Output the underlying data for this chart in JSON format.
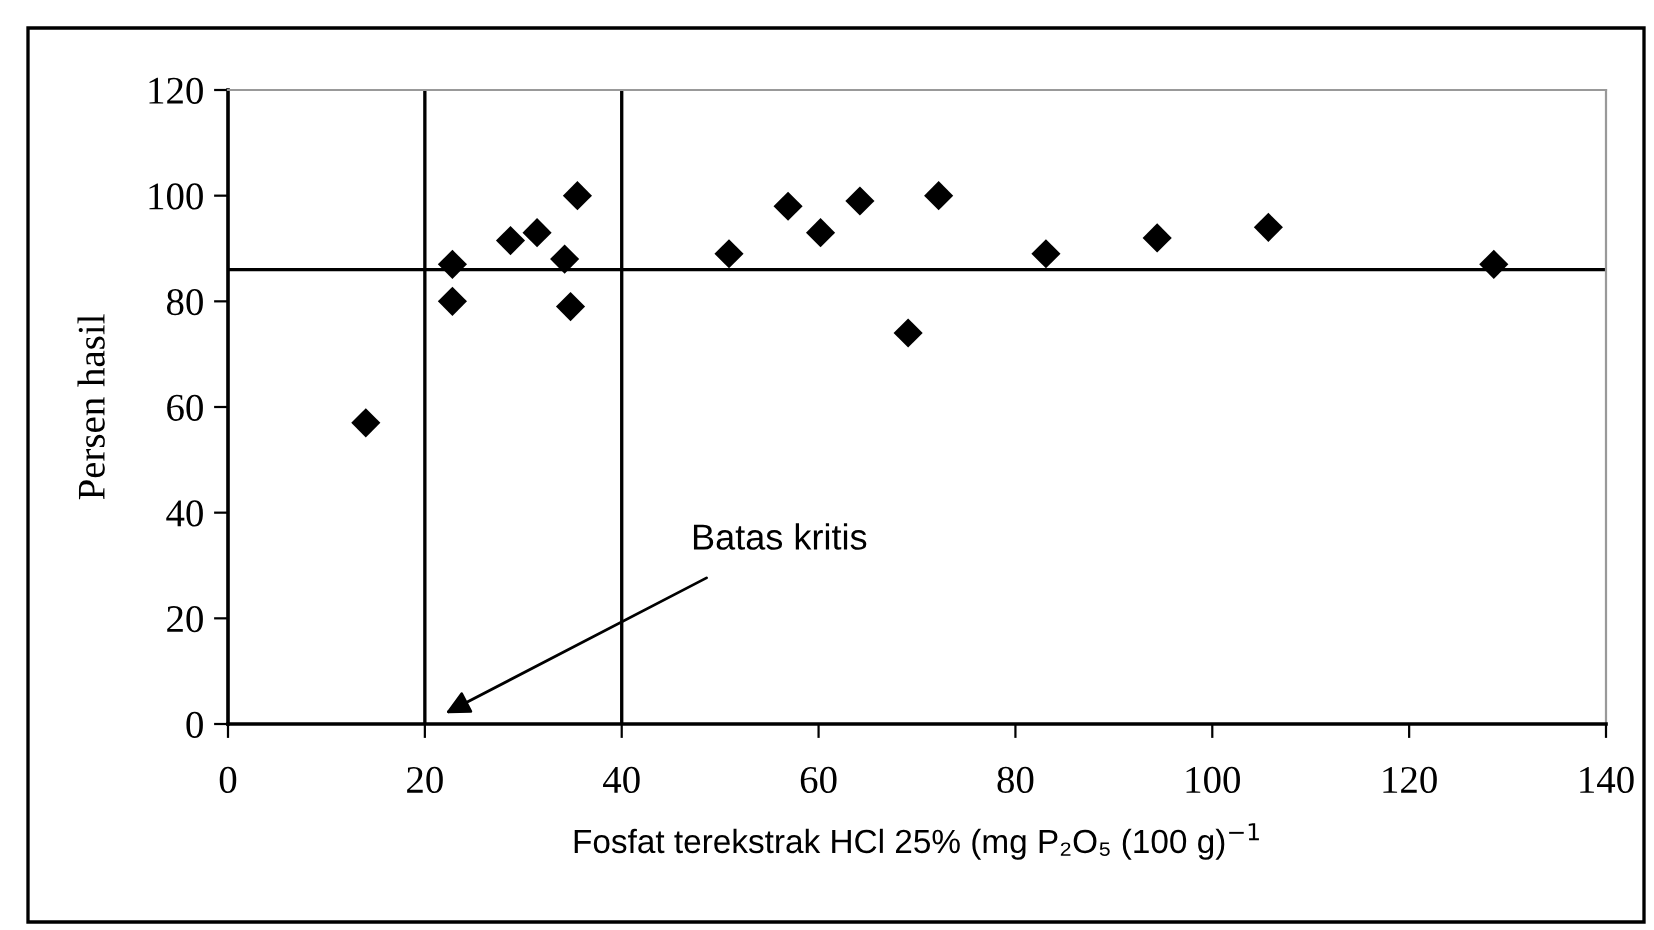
{
  "chart_data": {
    "type": "scatter",
    "xlabel": "Fosfat terekstrak HCl 25% (mg P₂O₅ (100 g)$^{−1}$",
    "ylabel": "Persen hasil",
    "x": [
      14.0,
      22.8,
      22.8,
      28.7,
      31.4,
      34.2,
      34.8,
      35.5,
      50.9,
      56.9,
      60.2,
      64.2,
      69.1,
      72.2,
      83.1,
      94.4,
      105.7,
      128.6
    ],
    "values": [
      57,
      87,
      80,
      91.5,
      93,
      88,
      79,
      100,
      89,
      98,
      93,
      99,
      74,
      100,
      89,
      92,
      94,
      87
    ],
    "color": "#000000",
    "marker": "diamond",
    "xlim": [
      0,
      140
    ],
    "xticks": [
      0,
      20,
      40,
      60,
      80,
      100,
      120,
      140
    ],
    "ylim": [
      0,
      120
    ],
    "yticks": [
      0,
      20,
      40,
      60,
      80,
      100,
      120
    ],
    "grid": false,
    "legend": false,
    "ref_lines": [
      {
        "axis": "x",
        "value": 20,
        "color": "#000000"
      },
      {
        "axis": "x",
        "value": 40,
        "color": "#000000"
      },
      {
        "axis": "y",
        "value": 86,
        "color": "#000000"
      }
    ],
    "annotations": [
      "Batas kritis"
    ]
  }
}
